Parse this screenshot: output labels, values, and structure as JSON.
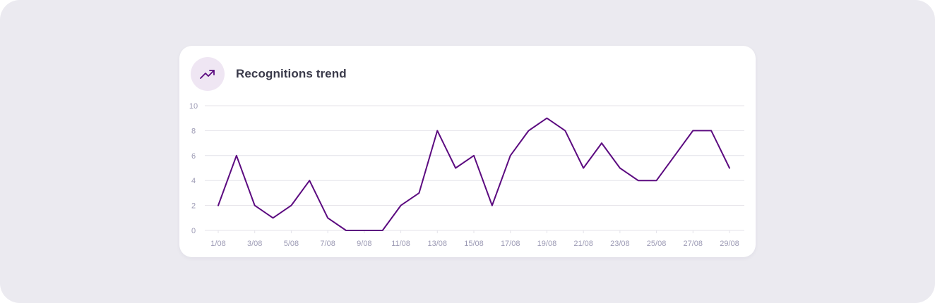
{
  "card": {
    "title": "Recognitions trend",
    "icon": "trending-up-icon"
  },
  "colors": {
    "background": "#ebeaf0",
    "card": "#ffffff",
    "icon_bg": "#efe6f3",
    "line": "#5c0b80",
    "grid": "#e4e3ea",
    "tick_text": "#9d9bb5"
  },
  "chart_data": {
    "type": "line",
    "ylim": [
      0,
      10
    ],
    "yticks": [
      0,
      2,
      4,
      6,
      8,
      10
    ],
    "xtick_labels": [
      "1/08",
      "3/08",
      "5/08",
      "7/08",
      "9/08",
      "11/08",
      "13/08",
      "15/08",
      "17/08",
      "19/08",
      "21/08",
      "23/08",
      "25/08",
      "27/08",
      "29/08"
    ],
    "x": [
      "1/08",
      "2/08",
      "3/08",
      "4/08",
      "5/08",
      "6/08",
      "7/08",
      "8/08",
      "9/08",
      "10/08",
      "11/08",
      "12/08",
      "13/08",
      "14/08",
      "15/08",
      "16/08",
      "17/08",
      "18/08",
      "19/08",
      "20/08",
      "21/08",
      "22/08",
      "23/08",
      "24/08",
      "25/08",
      "26/08",
      "27/08",
      "28/08",
      "29/08"
    ],
    "values": [
      2,
      6,
      2,
      1,
      2,
      4,
      1,
      0,
      0,
      0,
      2,
      3,
      8,
      5,
      6,
      2,
      6,
      8,
      9,
      8,
      5,
      7,
      5,
      4,
      4,
      6,
      8,
      8,
      5
    ],
    "grid": true,
    "legend": "none"
  }
}
